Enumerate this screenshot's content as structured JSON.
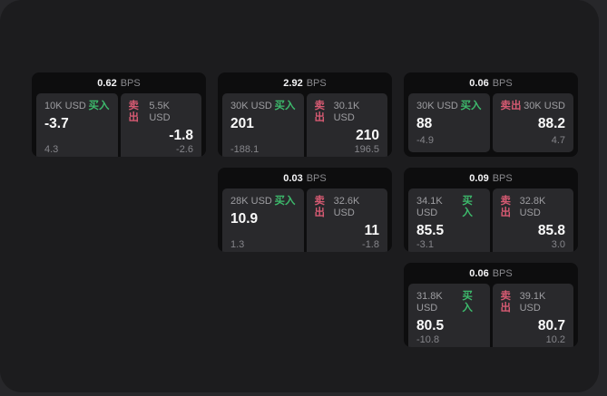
{
  "labels": {
    "bps_unit": "BPS",
    "buy": "买入",
    "sell": "卖出"
  },
  "colors": {
    "buy_green": "#3dba6c",
    "sell_red": "#d65a72",
    "card_bg": "#0d0d0e",
    "cell_bg": "#29292c",
    "surface_bg": "#1c1c1e",
    "backdrop_bg": "#27272a"
  },
  "cards": [
    {
      "bps": "0.62",
      "buy": {
        "notional": "10K USD",
        "price": "-3.7",
        "delta": "4.3"
      },
      "sell": {
        "notional": "5.5K USD",
        "price": "-1.8",
        "delta": "-2.6"
      }
    },
    {
      "bps": "2.92",
      "buy": {
        "notional": "30K USD",
        "price": "201",
        "delta": "-188.1"
      },
      "sell": {
        "notional": "30.1K USD",
        "price": "210",
        "delta": "196.5"
      }
    },
    {
      "bps": "0.06",
      "buy": {
        "notional": "30K USD",
        "price": "88",
        "delta": "-4.9"
      },
      "sell": {
        "notional": "30K USD",
        "price": "88.2",
        "delta": "4.7"
      }
    },
    {
      "bps": "0.03",
      "buy": {
        "notional": "28K USD",
        "price": "10.9",
        "delta": "1.3"
      },
      "sell": {
        "notional": "32.6K USD",
        "price": "11",
        "delta": "-1.8"
      }
    },
    {
      "bps": "0.09",
      "buy": {
        "notional": "34.1K USD",
        "price": "85.5",
        "delta": "-3.1"
      },
      "sell": {
        "notional": "32.8K USD",
        "price": "85.8",
        "delta": "3.0"
      }
    },
    {
      "bps": "0.06",
      "buy": {
        "notional": "31.8K USD",
        "price": "80.5",
        "delta": "-10.8"
      },
      "sell": {
        "notional": "39.1K USD",
        "price": "80.7",
        "delta": "10.2"
      }
    }
  ]
}
